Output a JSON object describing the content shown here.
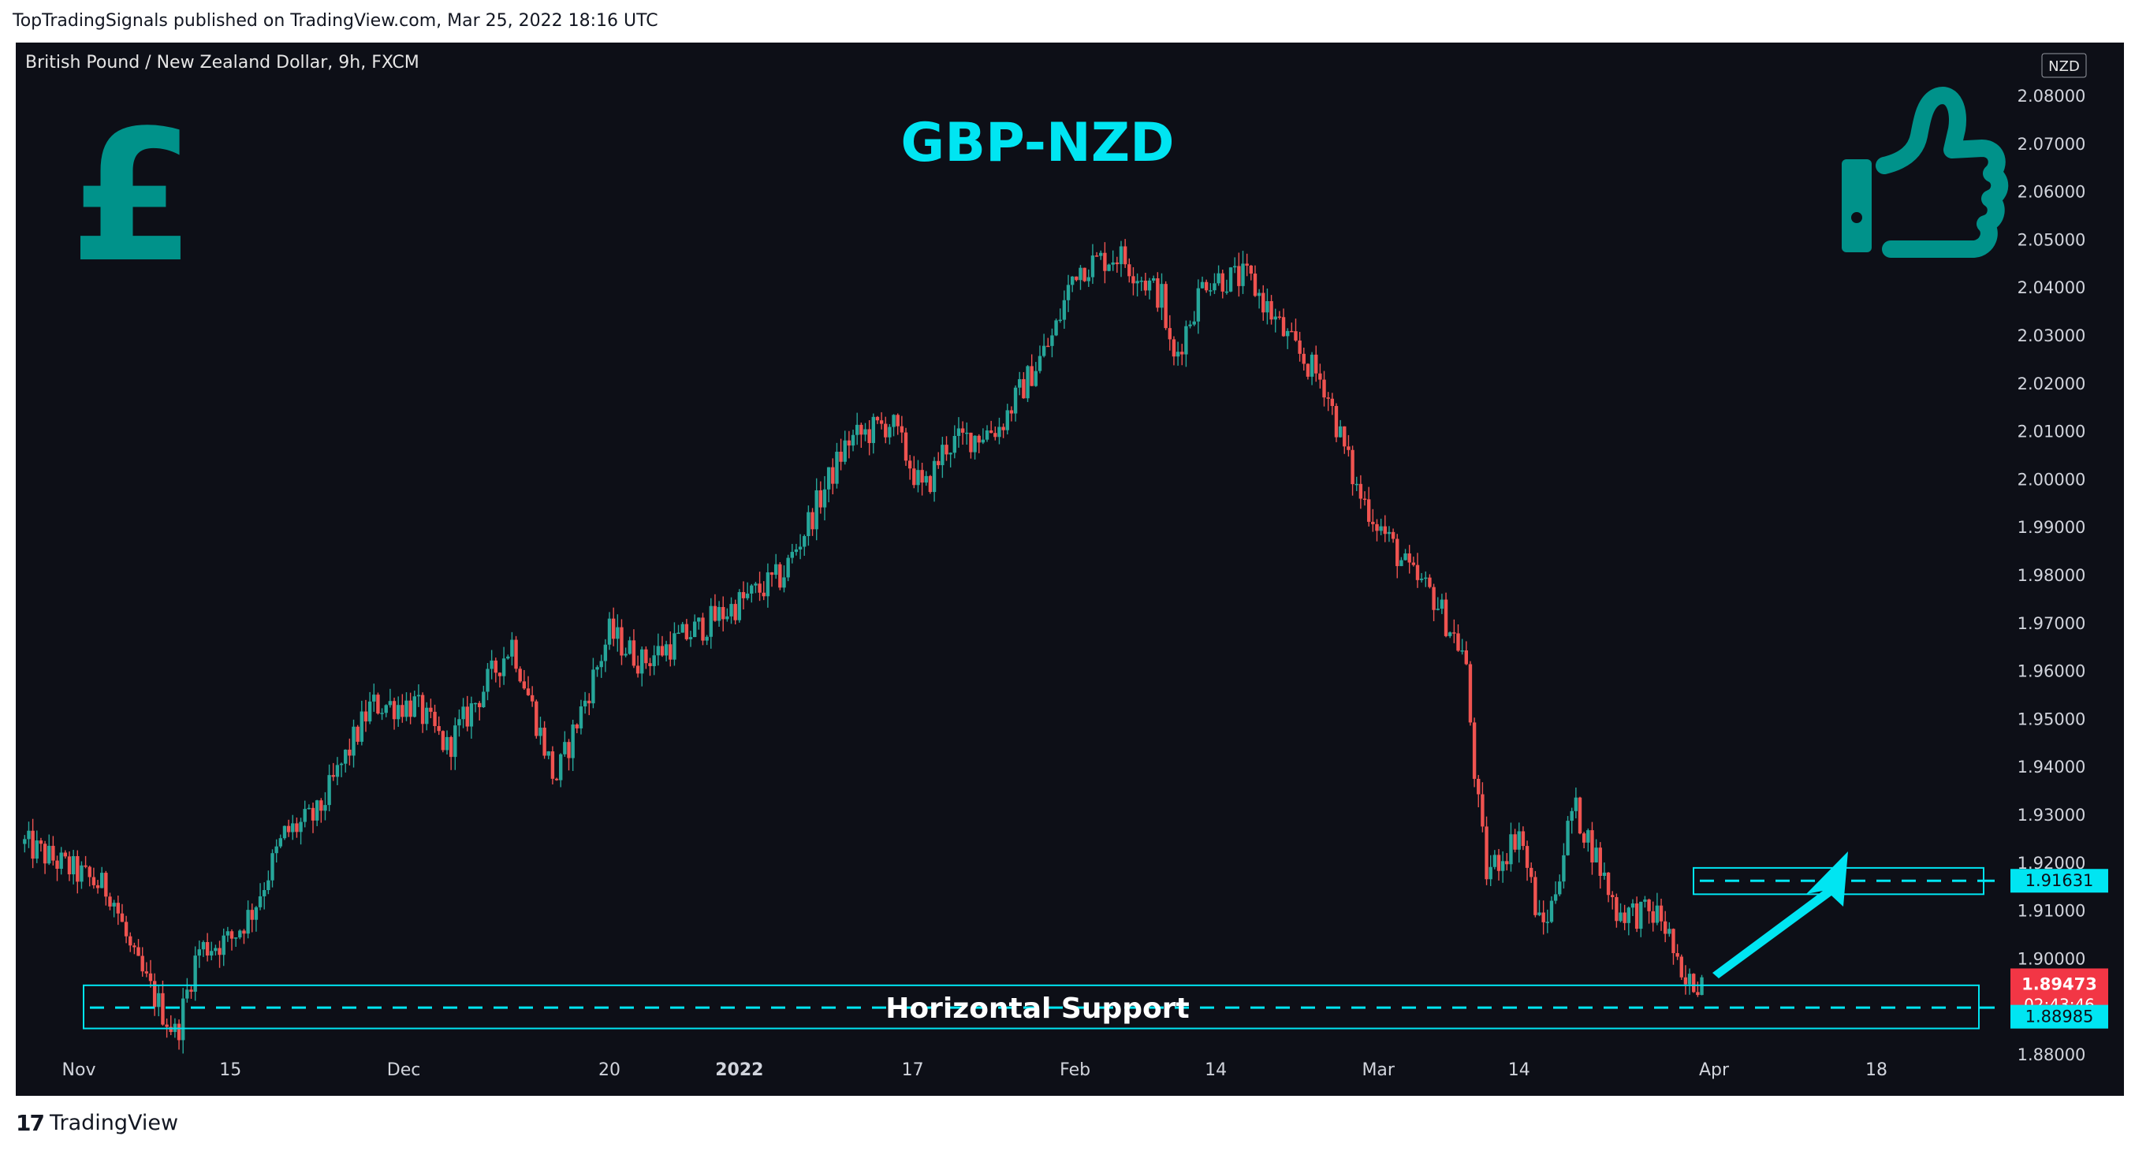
{
  "header": {
    "publisher_line": "TopTradingSignals published on TradingView.com, Mar 25, 2022 18:16 UTC"
  },
  "footer": {
    "logo": "17",
    "brand": "TradingView"
  },
  "colors": {
    "background": "#0d0f17",
    "up": "#26a69a",
    "down": "#ef5350",
    "accent": "#00e5f2",
    "teal_icon": "#00928a",
    "text": "#e6e6e6",
    "price_tag_down": "#f23645"
  },
  "chart_data": {
    "type": "candlestick",
    "symbol_title": "British Pound / New Zealand Dollar, 9h, FXCM",
    "headline": "GBP-NZD",
    "currency_badge": "NZD",
    "pound_icon": "pound-sign-icon",
    "thumbs_icon": "thumbs-up-icon",
    "support_label": "Horizontal Support",
    "ylim": [
      1.875,
      2.085
    ],
    "y_ticks": [
      "2.08000",
      "2.07000",
      "2.06000",
      "2.05000",
      "2.04000",
      "2.03000",
      "2.02000",
      "2.01000",
      "2.00000",
      "1.99000",
      "1.98000",
      "1.97000",
      "1.96000",
      "1.95000",
      "1.94000",
      "1.93000",
      "1.92000",
      "1.91000",
      "1.90000",
      "1.88000"
    ],
    "x_ticks": [
      {
        "label": "Nov",
        "bold": false,
        "day": 0
      },
      {
        "label": "15",
        "bold": false,
        "day": 14
      },
      {
        "label": "Dec",
        "bold": false,
        "day": 30
      },
      {
        "label": "20",
        "bold": false,
        "day": 49
      },
      {
        "label": "2022",
        "bold": true,
        "day": 61
      },
      {
        "label": "17",
        "bold": false,
        "day": 77
      },
      {
        "label": "Feb",
        "bold": false,
        "day": 92
      },
      {
        "label": "14",
        "bold": false,
        "day": 105
      },
      {
        "label": "Mar",
        "bold": false,
        "day": 120
      },
      {
        "label": "14",
        "bold": false,
        "day": 133
      },
      {
        "label": "Apr",
        "bold": false,
        "day": 151
      },
      {
        "label": "18",
        "bold": false,
        "day": 166
      }
    ],
    "anchors": [
      [
        -5,
        1.924
      ],
      [
        3,
        1.914
      ],
      [
        5,
        1.9
      ],
      [
        9,
        1.884
      ],
      [
        11,
        1.902
      ],
      [
        14,
        1.904
      ],
      [
        16,
        1.91
      ],
      [
        19,
        1.926
      ],
      [
        22,
        1.93
      ],
      [
        27,
        1.953
      ],
      [
        31,
        1.953
      ],
      [
        34,
        1.944
      ],
      [
        40,
        1.966
      ],
      [
        44,
        1.937
      ],
      [
        49,
        1.968
      ],
      [
        52,
        1.962
      ],
      [
        58,
        1.97
      ],
      [
        65,
        1.98
      ],
      [
        71,
        2.008
      ],
      [
        75,
        2.012
      ],
      [
        78,
        1.997
      ],
      [
        80,
        2.007
      ],
      [
        85,
        2.011
      ],
      [
        90,
        2.03
      ],
      [
        92,
        2.044
      ],
      [
        96,
        2.047
      ],
      [
        100,
        2.038
      ],
      [
        101,
        2.024
      ],
      [
        104,
        2.042
      ],
      [
        108,
        2.042
      ],
      [
        112,
        2.028
      ],
      [
        115,
        2.02
      ],
      [
        118,
        1.998
      ],
      [
        123,
        1.98
      ],
      [
        125,
        1.976
      ],
      [
        128,
        1.963
      ],
      [
        129,
        1.936
      ],
      [
        130,
        1.918
      ],
      [
        132,
        1.923
      ],
      [
        133,
        1.927
      ],
      [
        135,
        1.906
      ],
      [
        136,
        1.911
      ],
      [
        138,
        1.932
      ],
      [
        140,
        1.922
      ],
      [
        142,
        1.91
      ],
      [
        146,
        1.909
      ],
      [
        147,
        1.904
      ],
      [
        148,
        1.894
      ],
      [
        150,
        1.896
      ]
    ],
    "support_level": 1.88985,
    "support_zone": [
      1.8855,
      1.8945
    ],
    "target_level": 1.91631,
    "target_zone": [
      1.9135,
      1.919
    ],
    "current_price": 1.89473,
    "countdown": "02:43:46",
    "tags": {
      "target": "1.91631",
      "current": "1.89473",
      "support": "1.88985"
    }
  }
}
